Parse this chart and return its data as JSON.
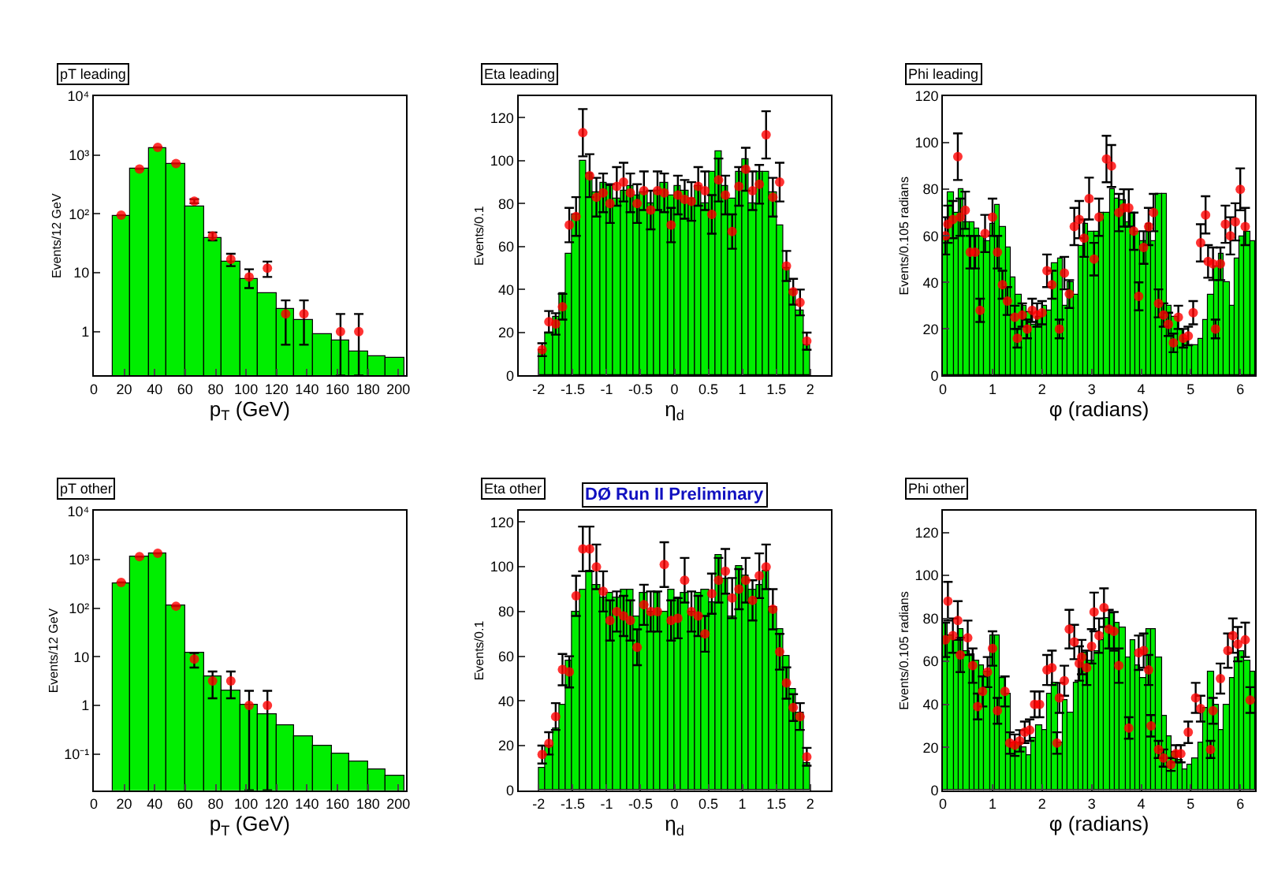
{
  "chart_data": [
    {
      "type": "histogram",
      "title": "pT leading",
      "xlabel": "p$_{T}$ (GeV)",
      "ylabel": "Events/12 GeV",
      "log": "y",
      "xlim": [
        0,
        205
      ],
      "xticks": [
        0,
        20,
        40,
        60,
        80,
        100,
        120,
        140,
        160,
        180,
        200
      ],
      "ylim": [
        0.18,
        10000
      ],
      "yticks": [
        1,
        10,
        {
          "value": 100,
          "label": "10²"
        },
        {
          "value": 1000,
          "label": "10³"
        },
        {
          "value": 10000,
          "label": "10⁴"
        }
      ],
      "series": [
        {
          "type": "histogram",
          "color": "#00ee00",
          "bins": [
            12,
            24,
            36,
            48,
            60,
            72,
            84,
            96,
            108,
            120,
            132,
            144,
            156,
            168,
            180,
            192,
            204
          ],
          "values": [
            90,
            600,
            1300,
            700,
            130,
            40,
            15,
            8,
            4.5,
            2.5,
            1.6,
            0.9,
            0.7,
            0.45,
            0.38,
            0.35
          ]
        },
        {
          "type": "scatter",
          "color": "#ff0000",
          "marker": "circle",
          "x": [
            18,
            30,
            42,
            54,
            66,
            78,
            90,
            102,
            114,
            126,
            138,
            162,
            174
          ],
          "values": [
            95,
            580,
            1350,
            720,
            165,
            42,
            17,
            8.5,
            12,
            2,
            2,
            1,
            1
          ],
          "errors": [
            null,
            null,
            null,
            null,
            13,
            6.5,
            4,
            3,
            3.5,
            1.4,
            1.4,
            [
              0.18,
              2
            ],
            [
              0.18,
              2
            ]
          ]
        }
      ]
    },
    {
      "type": "histogram",
      "title": "Eta leading",
      "xlabel": "η$_{d}$",
      "ylabel": "Events/0.1",
      "xlim": [
        -2.3,
        2.3
      ],
      "xticks": [
        -2,
        -1.5,
        -1,
        -0.5,
        0,
        0.5,
        1,
        1.5,
        2
      ],
      "ylim": [
        0,
        130
      ],
      "yticks": [
        0,
        20,
        40,
        60,
        80,
        100,
        120
      ],
      "series": [
        {
          "type": "histogram",
          "color": "#00ee00",
          "bins": [
            -2,
            -1.9,
            -1.8,
            -1.7,
            -1.6,
            -1.5,
            -1.4,
            -1.3,
            -1.2,
            -1.1,
            -1,
            -0.9,
            -0.8,
            -0.7,
            -0.6,
            -0.5,
            -0.4,
            -0.3,
            -0.2,
            -0.1,
            0,
            0.1,
            0.2,
            0.3,
            0.4,
            0.5,
            0.6,
            0.7,
            0.8,
            0.9,
            1,
            1.1,
            1.2,
            1.3,
            1.4,
            1.5,
            1.6,
            1.7,
            1.8,
            1.9,
            2
          ],
          "values": [
            12,
            20,
            27,
            38,
            57,
            75,
            100,
            94,
            85,
            90,
            88,
            82,
            86,
            88,
            84,
            85,
            80,
            86,
            90,
            84,
            88,
            86,
            82,
            88,
            80,
            95,
            104,
            88,
            82,
            95,
            101,
            80,
            95,
            95,
            85,
            70,
            50,
            40,
            30,
            14
          ]
        },
        {
          "type": "scatter",
          "color": "#ff0000",
          "marker": "circle",
          "x": [
            -1.95,
            -1.85,
            -1.75,
            -1.65,
            -1.55,
            -1.45,
            -1.35,
            -1.25,
            -1.15,
            -1.05,
            -0.95,
            -0.85,
            -0.75,
            -0.65,
            -0.55,
            -0.45,
            -0.35,
            -0.25,
            -0.15,
            -0.05,
            0.05,
            0.15,
            0.25,
            0.35,
            0.45,
            0.55,
            0.65,
            0.75,
            0.85,
            0.95,
            1.05,
            1.15,
            1.25,
            1.35,
            1.45,
            1.55,
            1.65,
            1.75,
            1.85,
            1.95
          ],
          "values": [
            12,
            25,
            24,
            32,
            70,
            74,
            113,
            93,
            83,
            85,
            80,
            88,
            90,
            85,
            80,
            86,
            77,
            86,
            85,
            70,
            84,
            82,
            81,
            88,
            86,
            75,
            91,
            84,
            67,
            88,
            96,
            86,
            89,
            112,
            83,
            90,
            51,
            39,
            34,
            16
          ],
          "errors": [
            3,
            5,
            5,
            6,
            8,
            9,
            11,
            10,
            9,
            9,
            9,
            9,
            9,
            9,
            9,
            9,
            9,
            9,
            9,
            8,
            9,
            9,
            9,
            9,
            9,
            9,
            10,
            9,
            8,
            9,
            10,
            9,
            9,
            11,
            9,
            9,
            7,
            6,
            6,
            4
          ]
        }
      ]
    },
    {
      "type": "histogram",
      "title": "Phi leading",
      "xlabel": "φ (radians)",
      "ylabel": "Events/0.105 radians",
      "xlim": [
        0,
        6.3
      ],
      "xticks": [
        0,
        1,
        2,
        3,
        4,
        5,
        6
      ],
      "ylim": [
        0,
        120
      ],
      "yticks": [
        0,
        20,
        40,
        60,
        80,
        100,
        120
      ],
      "series": [
        {
          "type": "histogram",
          "color": "#00ee00",
          "bins": [
            0,
            0.105,
            0.21,
            0.315,
            0.42,
            0.525,
            0.63,
            0.735,
            0.84,
            0.945,
            1.05,
            1.155,
            1.26,
            1.365,
            1.47,
            1.575,
            1.68,
            1.785,
            1.89,
            1.995,
            2.1,
            2.205,
            2.31,
            2.415,
            2.52,
            2.625,
            2.73,
            2.835,
            2.94,
            3.045,
            3.15,
            3.255,
            3.36,
            3.465,
            3.57,
            3.675,
            3.78,
            3.885,
            3.99,
            4.095,
            4.2,
            4.305,
            4.41,
            4.515,
            4.62,
            4.725,
            4.83,
            4.935,
            5.04,
            5.145,
            5.25,
            5.355,
            5.46,
            5.565,
            5.67,
            5.775,
            5.88,
            5.985,
            6.09,
            6.195,
            6.3
          ],
          "values": [
            60,
            79,
            70,
            80,
            66,
            66,
            63,
            60,
            58,
            65,
            73,
            64,
            55,
            42,
            35,
            30,
            27,
            22,
            25,
            30,
            28,
            48,
            50,
            30,
            40,
            35,
            56,
            65,
            62,
            62,
            70,
            70,
            80,
            76,
            75,
            66,
            70,
            62,
            58,
            65,
            58,
            78,
            78,
            30,
            25,
            20,
            16,
            13,
            13,
            16,
            24,
            35,
            47,
            52,
            40,
            30,
            50,
            60,
            62,
            58
          ]
        },
        {
          "type": "scatter",
          "color": "#ff0000",
          "marker": "circle",
          "x": [
            0.05,
            0.1,
            0.2,
            0.3,
            0.35,
            0.45,
            0.55,
            0.65,
            0.75,
            0.85,
            1.0,
            1.1,
            1.2,
            1.3,
            1.45,
            1.5,
            1.6,
            1.7,
            1.8,
            1.9,
            2.0,
            2.1,
            2.2,
            2.35,
            2.45,
            2.55,
            2.65,
            2.75,
            2.85,
            2.95,
            3.05,
            3.15,
            3.3,
            3.4,
            3.55,
            3.65,
            3.75,
            3.85,
            3.95,
            4.05,
            4.15,
            4.25,
            4.35,
            4.45,
            4.55,
            4.65,
            4.75,
            4.85,
            4.95,
            5.05,
            5.2,
            5.3,
            5.35,
            5.45,
            5.5,
            5.6,
            5.7,
            5.8,
            5.9,
            6.0,
            6.1
          ],
          "values": [
            60,
            65,
            67,
            94,
            68,
            71,
            53,
            53,
            28,
            61,
            68,
            53,
            39,
            32,
            25,
            16,
            26,
            20,
            28,
            26,
            27,
            45,
            39,
            20,
            44,
            35,
            64,
            67,
            59,
            76,
            50,
            68,
            93,
            90,
            70,
            72,
            72,
            62,
            34,
            55,
            64,
            70,
            31,
            26,
            22,
            14,
            25,
            16,
            17,
            27,
            57,
            69,
            49,
            48,
            20,
            48,
            65,
            60,
            66,
            80,
            64
          ],
          "errors": [
            8,
            8,
            8,
            10,
            8,
            8,
            7,
            7,
            5,
            8,
            8,
            7,
            6,
            6,
            5,
            4,
            5,
            4,
            5,
            5,
            5,
            7,
            6,
            4,
            7,
            6,
            8,
            8,
            8,
            9,
            7,
            8,
            10,
            9,
            8,
            8,
            8,
            8,
            6,
            7,
            8,
            8,
            6,
            5,
            5,
            4,
            5,
            4,
            4,
            5,
            8,
            8,
            7,
            7,
            4,
            7,
            8,
            8,
            8,
            9,
            8
          ]
        }
      ]
    },
    {
      "type": "histogram",
      "title": "pT other",
      "xlabel": "p$_{T}$ (GeV)",
      "ylabel": "Events/12 GeV",
      "log": "y",
      "xlim": [
        0,
        205
      ],
      "xticks": [
        0,
        20,
        40,
        60,
        80,
        100,
        120,
        140,
        160,
        180,
        200
      ],
      "ylim": [
        0.018,
        10000
      ],
      "yticks": [
        {
          "value": 0.1,
          "label": "10⁻¹"
        },
        1,
        10,
        {
          "value": 100,
          "label": "10²"
        },
        {
          "value": 1000,
          "label": "10³"
        },
        {
          "value": 10000,
          "label": "10⁴"
        }
      ],
      "series": [
        {
          "type": "histogram",
          "color": "#00ee00",
          "bins": [
            12,
            24,
            36,
            48,
            60,
            72,
            84,
            96,
            108,
            120,
            132,
            144,
            156,
            168,
            180,
            192,
            204
          ],
          "values": [
            320,
            1150,
            1300,
            110,
            12,
            4,
            2,
            1,
            0.65,
            0.38,
            0.23,
            0.15,
            0.1,
            0.07,
            0.048,
            0.037
          ]
        },
        {
          "type": "scatter",
          "color": "#ff0000",
          "marker": "circle",
          "x": [
            18,
            30,
            42,
            54,
            66,
            78,
            90,
            102,
            114
          ],
          "values": [
            340,
            1150,
            1350,
            110,
            9,
            3.2,
            3.2,
            1,
            1
          ],
          "errors": [
            null,
            null,
            null,
            null,
            3,
            1.8,
            1.8,
            [
              0.018,
              2
            ],
            [
              0.018,
              2
            ]
          ]
        }
      ]
    },
    {
      "type": "histogram",
      "title": "Eta other",
      "xlabel": "η$_{d}$",
      "ylabel": "Events/0.1",
      "xlim": [
        -2.3,
        2.3
      ],
      "xticks": [
        -2,
        -1.5,
        -1,
        -0.5,
        0,
        0.5,
        1,
        1.5,
        2
      ],
      "ylim": [
        0,
        125
      ],
      "yticks": [
        0,
        20,
        40,
        60,
        80,
        100,
        120
      ],
      "annotations": [
        "DØ Run II Preliminary"
      ],
      "series": [
        {
          "type": "histogram",
          "color": "#00ee00",
          "bins": [
            -2,
            -1.9,
            -1.8,
            -1.7,
            -1.6,
            -1.5,
            -1.4,
            -1.3,
            -1.2,
            -1.1,
            -1,
            -0.9,
            -0.8,
            -0.7,
            -0.6,
            -0.5,
            -0.4,
            -0.3,
            -0.2,
            -0.1,
            0,
            0.1,
            0.2,
            0.3,
            0.4,
            0.5,
            0.6,
            0.7,
            0.8,
            0.9,
            1,
            1.1,
            1.2,
            1.3,
            1.4,
            1.5,
            1.6,
            1.7,
            1.8,
            1.9,
            2
          ],
          "values": [
            10,
            20,
            28,
            38,
            58,
            80,
            90,
            98,
            92,
            86,
            88,
            86,
            90,
            90,
            78,
            88,
            80,
            88,
            80,
            90,
            86,
            88,
            80,
            88,
            90,
            84,
            105,
            95,
            78,
            100,
            96,
            90,
            92,
            98,
            82,
            72,
            60,
            45,
            35,
            12
          ]
        },
        {
          "type": "scatter",
          "color": "#ff0000",
          "marker": "circle",
          "x": [
            -1.95,
            -1.85,
            -1.75,
            -1.65,
            -1.55,
            -1.45,
            -1.35,
            -1.25,
            -1.15,
            -1.05,
            -0.95,
            -0.85,
            -0.75,
            -0.65,
            -0.55,
            -0.45,
            -0.35,
            -0.25,
            -0.15,
            -0.05,
            0.05,
            0.15,
            0.25,
            0.35,
            0.45,
            0.55,
            0.65,
            0.75,
            0.85,
            0.95,
            1.05,
            1.15,
            1.25,
            1.35,
            1.45,
            1.55,
            1.65,
            1.75,
            1.85,
            1.95
          ],
          "values": [
            16,
            21,
            33,
            54,
            53,
            87,
            108,
            108,
            100,
            89,
            76,
            80,
            78,
            76,
            64,
            83,
            80,
            80,
            101,
            76,
            77,
            94,
            80,
            78,
            70,
            88,
            94,
            98,
            86,
            90,
            94,
            85,
            96,
            100,
            81,
            62,
            48,
            37,
            33,
            15
          ],
          "errors": [
            4,
            5,
            6,
            7,
            7,
            9,
            10,
            10,
            10,
            9,
            9,
            9,
            9,
            9,
            8,
            9,
            9,
            9,
            10,
            9,
            9,
            10,
            9,
            9,
            8,
            9,
            10,
            10,
            9,
            9,
            10,
            9,
            10,
            10,
            9,
            8,
            7,
            6,
            6,
            4
          ]
        }
      ]
    },
    {
      "type": "histogram",
      "title": "Phi other",
      "xlabel": "φ (radians)",
      "ylabel": "Events/0.105 radians",
      "xlim": [
        0,
        6.3
      ],
      "xticks": [
        0,
        1,
        2,
        3,
        4,
        5,
        6
      ],
      "ylim": [
        0,
        130
      ],
      "yticks": [
        0,
        20,
        40,
        60,
        80,
        100,
        120
      ],
      "series": [
        {
          "type": "histogram",
          "color": "#00ee00",
          "bins": [
            0,
            0.105,
            0.21,
            0.315,
            0.42,
            0.525,
            0.63,
            0.735,
            0.84,
            0.945,
            1.05,
            1.155,
            1.26,
            1.365,
            1.47,
            1.575,
            1.68,
            1.785,
            1.89,
            1.995,
            2.1,
            2.205,
            2.31,
            2.415,
            2.52,
            2.625,
            2.73,
            2.835,
            2.94,
            3.045,
            3.15,
            3.255,
            3.36,
            3.465,
            3.57,
            3.675,
            3.78,
            3.885,
            3.99,
            4.095,
            4.2,
            4.305,
            4.41,
            4.515,
            4.62,
            4.725,
            4.83,
            4.935,
            5.04,
            5.145,
            5.25,
            5.355,
            5.46,
            5.565,
            5.67,
            5.775,
            5.88,
            5.985,
            6.09,
            6.195,
            6.3
          ],
          "values": [
            78,
            72,
            70,
            75,
            65,
            63,
            60,
            58,
            55,
            72,
            72,
            52,
            45,
            22,
            22,
            20,
            16,
            24,
            30,
            28,
            45,
            50,
            22,
            42,
            36,
            50,
            60,
            64,
            60,
            65,
            70,
            80,
            82,
            78,
            76,
            62,
            70,
            58,
            52,
            75,
            75,
            62,
            35,
            25,
            18,
            14,
            10,
            12,
            15,
            22,
            38,
            55,
            40,
            28,
            40,
            52,
            62,
            65,
            60,
            55
          ]
        },
        {
          "type": "scatter",
          "color": "#ff0000",
          "marker": "circle",
          "x": [
            0.05,
            0.1,
            0.2,
            0.3,
            0.35,
            0.5,
            0.6,
            0.7,
            0.8,
            0.9,
            1.0,
            1.1,
            1.25,
            1.35,
            1.45,
            1.55,
            1.65,
            1.75,
            1.85,
            1.95,
            2.1,
            2.2,
            2.3,
            2.35,
            2.45,
            2.55,
            2.65,
            2.75,
            2.8,
            2.9,
            3.0,
            3.05,
            3.15,
            3.25,
            3.35,
            3.45,
            3.55,
            3.75,
            3.95,
            4.05,
            4.15,
            4.2,
            4.35,
            4.45,
            4.6,
            4.7,
            4.8,
            4.95,
            5.1,
            5.2,
            5.4,
            5.45,
            5.6,
            5.75,
            5.85,
            5.95,
            6.1,
            6.2
          ],
          "values": [
            70,
            88,
            72,
            79,
            63,
            71,
            58,
            39,
            46,
            55,
            66,
            37,
            46,
            22,
            21,
            23,
            27,
            28,
            40,
            40,
            56,
            57,
            22,
            43,
            51,
            75,
            69,
            59,
            62,
            57,
            67,
            83,
            72,
            85,
            75,
            74,
            58,
            29,
            64,
            65,
            56,
            30,
            19,
            15,
            12,
            17,
            17,
            27,
            43,
            38,
            19,
            37,
            52,
            65,
            72,
            68,
            70,
            42
          ],
          "errors": [
            8,
            9,
            8,
            9,
            8,
            8,
            8,
            6,
            7,
            7,
            8,
            6,
            7,
            5,
            5,
            5,
            5,
            5,
            6,
            6,
            7,
            8,
            5,
            7,
            7,
            9,
            8,
            8,
            8,
            8,
            8,
            9,
            8,
            9,
            9,
            9,
            8,
            5,
            8,
            8,
            7,
            5,
            4,
            4,
            3,
            4,
            4,
            5,
            7,
            6,
            4,
            6,
            7,
            8,
            8,
            8,
            8,
            6
          ]
        }
      ]
    }
  ]
}
